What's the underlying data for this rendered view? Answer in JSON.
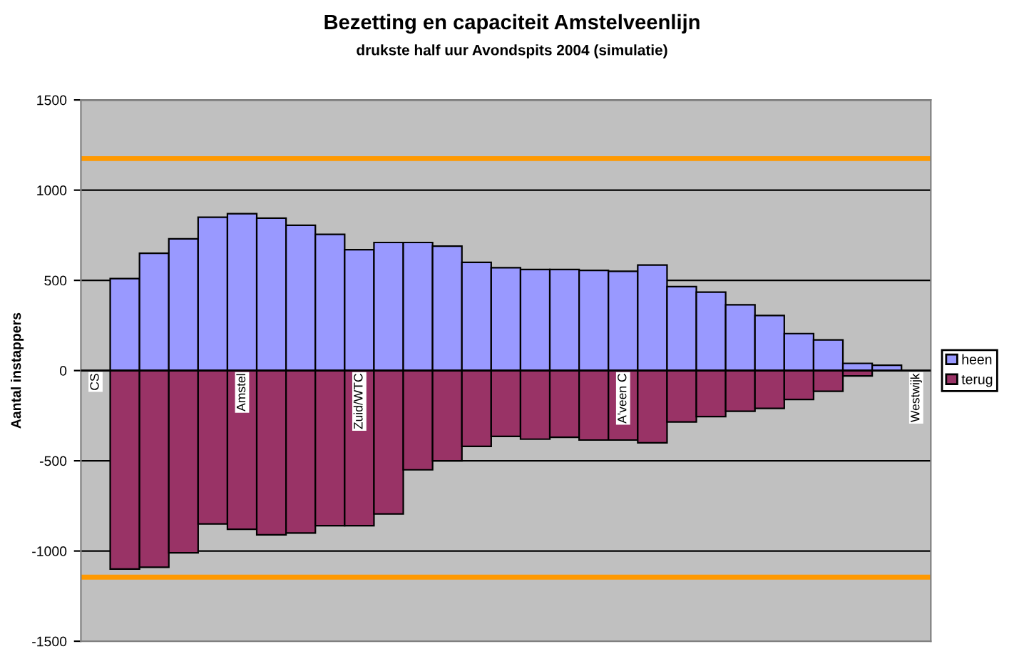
{
  "chart_data": {
    "type": "bar",
    "title": "Bezetting en capaciteit Amstelveenlijn",
    "subtitle": "drukste half uur Avondspits 2004 (simulatie)",
    "ylabel": "Aantal instappers",
    "categories": [
      "CS",
      null,
      null,
      null,
      null,
      "Amstel",
      null,
      null,
      null,
      "Zuid/WTC",
      null,
      null,
      null,
      null,
      null,
      null,
      null,
      null,
      "A'veen C",
      null,
      null,
      null,
      null,
      null,
      null,
      null,
      null,
      null,
      "Westwijk"
    ],
    "series": [
      {
        "name": "heen",
        "color": "#9999ff",
        "values": [
          null,
          510,
          650,
          730,
          850,
          870,
          845,
          805,
          755,
          670,
          710,
          710,
          690,
          600,
          570,
          560,
          560,
          555,
          550,
          585,
          465,
          435,
          365,
          305,
          205,
          170,
          40,
          30,
          null
        ]
      },
      {
        "name": "terug",
        "color": "#993366",
        "values": [
          null,
          -1100,
          -1090,
          -1010,
          -850,
          -880,
          -910,
          -900,
          -860,
          -860,
          -795,
          -550,
          -500,
          -420,
          -365,
          -380,
          -370,
          -385,
          -385,
          -400,
          -285,
          -255,
          -225,
          -210,
          -160,
          -115,
          -30,
          null,
          null
        ]
      }
    ],
    "ylim": [
      -1500,
      1500
    ],
    "yticks": [
      -1500,
      -1000,
      -500,
      0,
      500,
      1000,
      1500
    ],
    "ref_lines": [
      {
        "axis": "y",
        "value": 1175,
        "label": null,
        "color": "#ff9900"
      },
      {
        "axis": "y",
        "value": -1145,
        "label": null,
        "color": "#ff9900"
      }
    ],
    "stacked": true,
    "grid": "y",
    "legend": "right"
  }
}
